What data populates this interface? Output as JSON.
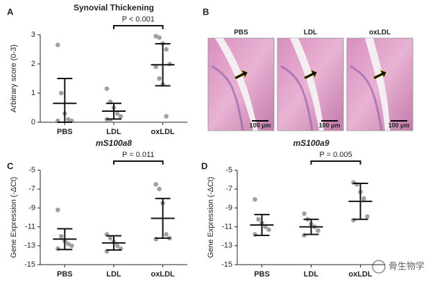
{
  "chart_data": [
    {
      "type": "dotplot",
      "panel_label": "A",
      "title": "Synovial Thickening",
      "title_italic": false,
      "ylabel": "Arbitrary score (0-3)",
      "categories": [
        "PBS",
        "LDL",
        "oxLDL"
      ],
      "points": [
        [
          2.65,
          1.0,
          0.3,
          0.1,
          0.05,
          0.05
        ],
        [
          1.15,
          0.7,
          0.5,
          0.3,
          0.2,
          0.1,
          0.05
        ],
        [
          2.95,
          2.9,
          2.7,
          2.5,
          2.0,
          1.9,
          1.5,
          1.3,
          0.2
        ]
      ],
      "mean": [
        0.65,
        0.38,
        1.97
      ],
      "sd": [
        0.85,
        0.27,
        0.72
      ],
      "significance": "P < 0.001",
      "ylim": [
        0,
        3
      ],
      "yticks": [
        0,
        1,
        2,
        3
      ],
      "point_color": "#a0a0a0"
    },
    {
      "type": "dotplot",
      "panel_label": "C",
      "title": "mS100a8",
      "title_italic": true,
      "ylabel": "Gene Expression (-ΔCt)",
      "categories": [
        "PBS",
        "LDL",
        "oxLDL"
      ],
      "points": [
        [
          -9.2,
          -12.0,
          -12.5,
          -12.8,
          -13.0,
          -13.3
        ],
        [
          -11.8,
          -12.2,
          -12.6,
          -13.0,
          -13.3,
          -13.6
        ],
        [
          -6.5,
          -7.0,
          -8.5,
          -11.8,
          -12.2,
          -12.3
        ]
      ],
      "mean": [
        -12.3,
        -12.7,
        -10.1
      ],
      "sd": [
        1.1,
        0.75,
        2.1
      ],
      "significance": "P = 0.011",
      "ylim": [
        -15,
        -5
      ],
      "yticks": [
        -5,
        -7,
        -9,
        -11,
        -13,
        -15
      ],
      "point_color": "#a0a0a0"
    },
    {
      "type": "dotplot",
      "panel_label": "D",
      "title": "mS100a9",
      "title_italic": true,
      "ylabel": "Gene Expression (-ΔCt)",
      "categories": [
        "PBS",
        "LDL",
        "oxLDL"
      ],
      "points": [
        [
          -8.1,
          -10.2,
          -10.6,
          -11.0,
          -11.3,
          -11.8
        ],
        [
          -9.6,
          -10.2,
          -10.7,
          -11.0,
          -11.4,
          -11.9
        ],
        [
          -6.3,
          -6.5,
          -7.3,
          -8.0,
          -9.9,
          -10.3
        ]
      ],
      "mean": [
        -10.8,
        -11.0,
        -8.3
      ],
      "sd": [
        1.1,
        0.8,
        1.9
      ],
      "significance": "P = 0.005",
      "ylim": [
        -15,
        -5
      ],
      "yticks": [
        -5,
        -7,
        -9,
        -11,
        -13,
        -15
      ],
      "point_color": "#a0a0a0"
    }
  ],
  "histology": {
    "panel_label": "B",
    "images": [
      {
        "label": "PBS",
        "scale": "100 µm"
      },
      {
        "label": "LDL",
        "scale": "100 µm"
      },
      {
        "label": "oxLDL",
        "scale": "100 µm"
      }
    ]
  },
  "watermark": "骨生物学"
}
